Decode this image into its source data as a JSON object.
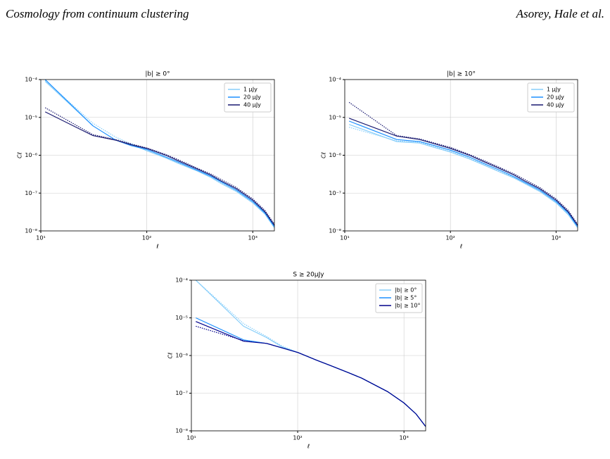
{
  "header": {
    "title": "Cosmology from continuum clustering",
    "authors": "Asorey, Hale et al."
  },
  "chart_data": [
    {
      "type": "line",
      "title": "|b| ≥ 0°",
      "xlabel": "ℓ",
      "ylabel": "Cℓ",
      "log_x": true,
      "log_y": true,
      "grid": true,
      "legend": "upper right",
      "xlim": [
        10,
        1600
      ],
      "ylim": [
        1e-08,
        0.0001
      ],
      "xticks": [
        {
          "value": 10,
          "label": "10¹"
        },
        {
          "value": 100,
          "label": "10²"
        },
        {
          "value": 1000,
          "label": "10³"
        }
      ],
      "yticks": [
        {
          "value": 1e-08,
          "label": "10⁻⁸"
        },
        {
          "value": 1e-07,
          "label": "10⁻⁷"
        },
        {
          "value": 1e-06,
          "label": "10⁻⁶"
        },
        {
          "value": 1e-05,
          "label": "10⁻⁵"
        },
        {
          "value": 0.0001,
          "label": "10⁻⁴"
        }
      ],
      "x": [
        11,
        31,
        51,
        71,
        101,
        151,
        201,
        301,
        401,
        501,
        701,
        1001,
        1301,
        1600
      ],
      "series": [
        {
          "name": "1 μJy",
          "color": "#87cefa",
          "values": [
            9e-05,
            6e-06,
            null,
            2e-06,
            1.3e-06,
            8.5e-07,
            6e-07,
            3.8e-07,
            2.6e-07,
            1.8e-07,
            1.1e-07,
            5.5e-08,
            2.8e-08,
            1.2e-08
          ]
        },
        {
          "name": "20 μJy",
          "color": "#1e90ff",
          "values": [
            0.0001,
            6e-06,
            2.5e-06,
            1.8e-06,
            1.4e-06,
            9e-07,
            6.5e-07,
            4e-07,
            2.8e-07,
            2e-07,
            1.2e-07,
            6e-08,
            3e-08,
            1.3e-08
          ]
        },
        {
          "name": "40 μJy",
          "color": "#191970",
          "values": [
            1.4e-05,
            3.3e-06,
            2.5e-06,
            1.9e-06,
            1.5e-06,
            1e-06,
            7e-07,
            4.3e-07,
            3e-07,
            2.1e-07,
            1.3e-07,
            6.5e-08,
            3.2e-08,
            1.4e-08
          ]
        }
      ],
      "model_series": [
        {
          "color": "#87cefa",
          "values": [
            9.5e-05,
            7e-06,
            3e-06,
            2e-06,
            1.4e-06,
            9e-07,
            6.3e-07,
            3.9e-07,
            2.7e-07,
            1.9e-07,
            1.15e-07,
            5.8e-08,
            2.9e-08,
            1.25e-08
          ]
        },
        {
          "color": "#191970",
          "values": [
            1.8e-05,
            3.5e-06,
            2.6e-06,
            2e-06,
            1.55e-06,
            1.05e-06,
            7.5e-07,
            4.5e-07,
            3.2e-07,
            2.3e-07,
            1.4e-07,
            7e-08,
            3.5e-08,
            1.5e-08
          ]
        }
      ]
    },
    {
      "type": "line",
      "title": "|b| ≥ 10°",
      "xlabel": "ℓ",
      "ylabel": "Cℓ",
      "log_x": true,
      "log_y": true,
      "grid": true,
      "legend": "upper right",
      "xlim": [
        10,
        1600
      ],
      "ylim": [
        1e-08,
        0.0001
      ],
      "xticks": [
        {
          "value": 10,
          "label": "10¹"
        },
        {
          "value": 100,
          "label": "10²"
        },
        {
          "value": 1000,
          "label": "10³"
        }
      ],
      "yticks": [
        {
          "value": 1e-08,
          "label": "10⁻⁸"
        },
        {
          "value": 1e-07,
          "label": "10⁻⁷"
        },
        {
          "value": 1e-06,
          "label": "10⁻⁶"
        },
        {
          "value": 1e-05,
          "label": "10⁻⁵"
        },
        {
          "value": 0.0001,
          "label": "10⁻⁴"
        }
      ],
      "x": [
        11,
        31,
        51,
        71,
        101,
        151,
        201,
        301,
        401,
        501,
        701,
        1001,
        1301,
        1600
      ],
      "series": [
        {
          "name": "1 μJy",
          "color": "#87cefa",
          "values": [
            6.5e-06,
            2.3e-06,
            2.1e-06,
            1.6e-06,
            1.2e-06,
            8e-07,
            5.7e-07,
            3.5e-07,
            2.5e-07,
            1.8e-07,
            1.1e-07,
            5.5e-08,
            2.7e-08,
            1.2e-08
          ]
        },
        {
          "name": "20 μJy",
          "color": "#1e90ff",
          "values": [
            8e-06,
            2.6e-06,
            2.3e-06,
            1.8e-06,
            1.35e-06,
            9e-07,
            6.3e-07,
            3.9e-07,
            2.7e-07,
            1.95e-07,
            1.2e-07,
            6e-08,
            3e-08,
            1.3e-08
          ]
        },
        {
          "name": "40 μJy",
          "color": "#191970",
          "values": [
            9.5e-06,
            3.2e-06,
            2.6e-06,
            2e-06,
            1.5e-06,
            1e-06,
            7e-07,
            4.3e-07,
            3e-07,
            2.1e-07,
            1.3e-07,
            6.5e-08,
            3.2e-08,
            1.4e-08
          ]
        }
      ],
      "model_series": [
        {
          "color": "#87cefa",
          "values": [
            5.5e-06,
            2.4e-06,
            2.2e-06,
            1.7e-06,
            1.25e-06,
            8.3e-07,
            5.9e-07,
            3.6e-07,
            2.6e-07,
            1.85e-07,
            1.15e-07,
            5.7e-08,
            2.8e-08,
            1.25e-08
          ]
        },
        {
          "color": "#191970",
          "values": [
            2.5e-05,
            3.3e-06,
            2.7e-06,
            2.1e-06,
            1.6e-06,
            1.05e-06,
            7.5e-07,
            4.6e-07,
            3.2e-07,
            2.3e-07,
            1.4e-07,
            7e-08,
            3.5e-08,
            1.5e-08
          ]
        }
      ]
    },
    {
      "type": "line",
      "title": "S ≥ 20μJy",
      "xlabel": "ℓ",
      "ylabel": "Cℓ",
      "log_x": true,
      "log_y": true,
      "grid": true,
      "legend": "upper right",
      "xlim": [
        10,
        1600
      ],
      "ylim": [
        1e-08,
        0.0001
      ],
      "xticks": [
        {
          "value": 10,
          "label": "10¹"
        },
        {
          "value": 100,
          "label": "10²"
        },
        {
          "value": 1000,
          "label": "10³"
        }
      ],
      "yticks": [
        {
          "value": 1e-08,
          "label": "10⁻⁸"
        },
        {
          "value": 1e-07,
          "label": "10⁻⁷"
        },
        {
          "value": 1e-06,
          "label": "10⁻⁶"
        },
        {
          "value": 1e-05,
          "label": "10⁻⁵"
        },
        {
          "value": 0.0001,
          "label": "10⁻⁴"
        }
      ],
      "x": [
        11,
        31,
        51,
        71,
        101,
        151,
        201,
        301,
        401,
        501,
        701,
        1001,
        1301,
        1600
      ],
      "series": [
        {
          "name": "|b| ≥  0°",
          "color": "#87cefa",
          "values": [
            0.0001,
            6e-06,
            3e-06,
            1.7e-06,
            1.2e-06,
            7.5e-07,
            5.5e-07,
            3.5e-07,
            2.5e-07,
            1.8e-07,
            1.1e-07,
            5.5e-08,
            2.8e-08,
            1.3e-08
          ]
        },
        {
          "name": "|b| ≥  5°",
          "color": "#1e90ff",
          "values": [
            1e-05,
            2.6e-06,
            2.1e-06,
            1.6e-06,
            1.2e-06,
            7.5e-07,
            5.5e-07,
            3.5e-07,
            2.5e-07,
            1.8e-07,
            1.1e-07,
            5.5e-08,
            2.8e-08,
            1.3e-08
          ]
        },
        {
          "name": "|b| ≥  10°",
          "color": "#00008b",
          "values": [
            8e-06,
            2.4e-06,
            2.1e-06,
            1.6e-06,
            1.2e-06,
            7.5e-07,
            5.5e-07,
            3.5e-07,
            2.5e-07,
            1.8e-07,
            1.1e-07,
            5.5e-08,
            2.8e-08,
            1.3e-08
          ]
        }
      ],
      "model_series": [
        {
          "color": "#87cefa",
          "values": [
            0.0001,
            7e-06,
            3.2e-06,
            1.8e-06,
            1.2e-06,
            7.5e-07,
            5.5e-07,
            3.5e-07,
            2.5e-07,
            1.8e-07,
            1.1e-07,
            5.5e-08,
            2.8e-08,
            1.3e-08
          ]
        },
        {
          "color": "#00008b",
          "values": [
            6e-06,
            2.5e-06,
            2.1e-06,
            1.6e-06,
            1.2e-06,
            7.5e-07,
            5.5e-07,
            3.5e-07,
            2.5e-07,
            1.8e-07,
            1.1e-07,
            5.5e-08,
            2.8e-08,
            1.3e-08
          ]
        }
      ]
    }
  ]
}
